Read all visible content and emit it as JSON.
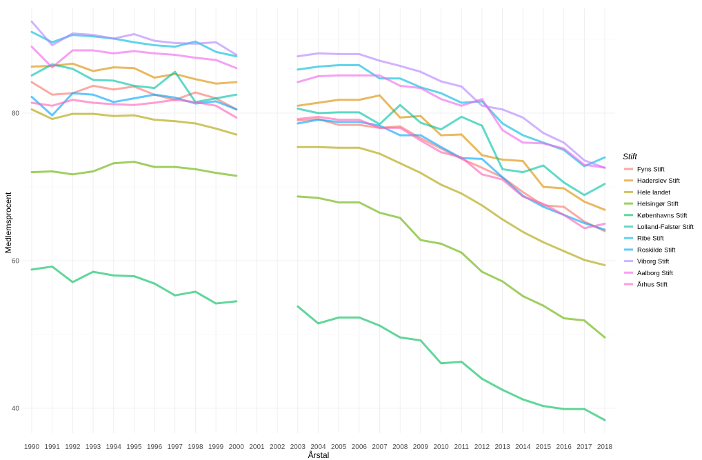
{
  "chart_data": {
    "type": "line",
    "xlabel": "Årstal",
    "ylabel": "Medlemsprocent",
    "legend_title": "Stift",
    "legend_position": "right",
    "grid": true,
    "xlim": [
      1990,
      2018
    ],
    "ylim": [
      35.5,
      93.5
    ],
    "y_ticks": [
      40,
      60,
      80
    ],
    "x": [
      1990,
      1991,
      1992,
      1993,
      1994,
      1995,
      1996,
      1997,
      1998,
      1999,
      2000,
      2001,
      2002,
      2003,
      2004,
      2005,
      2006,
      2007,
      2008,
      2009,
      2010,
      2011,
      2012,
      2013,
      2014,
      2015,
      2016,
      2017,
      2018
    ],
    "series": [
      {
        "name": "Fyns Stift",
        "color": "#F8766D",
        "values": [
          84.2,
          82.5,
          82.7,
          83.7,
          83.2,
          83.6,
          82.5,
          81.8,
          82.8,
          82.0,
          80.5,
          null,
          null,
          79.0,
          79.2,
          78.4,
          78.4,
          78.0,
          78.2,
          76.6,
          75.2,
          73.8,
          72.6,
          71.3,
          69.3,
          67.5,
          67.3,
          65.3,
          64.0
        ]
      },
      {
        "name": "Haderslev Stift",
        "color": "#DB8E00",
        "values": [
          86.3,
          86.4,
          86.7,
          85.7,
          86.2,
          86.1,
          84.8,
          85.3,
          84.6,
          84.0,
          84.2,
          null,
          null,
          81.0,
          81.4,
          81.8,
          81.8,
          82.4,
          79.4,
          79.6,
          77.0,
          77.1,
          74.3,
          73.7,
          73.5,
          70.0,
          69.8,
          68.0,
          66.9
        ]
      },
      {
        "name": "Hele landet",
        "color": "#AEA200",
        "values": [
          80.5,
          79.2,
          79.9,
          79.9,
          79.6,
          79.7,
          79.1,
          78.9,
          78.6,
          77.9,
          77.1,
          null,
          null,
          75.4,
          75.4,
          75.3,
          75.3,
          74.5,
          73.2,
          71.9,
          70.3,
          69.1,
          67.5,
          65.6,
          63.9,
          62.5,
          61.3,
          60.1,
          59.4
        ]
      },
      {
        "name": "Helsingør Stift",
        "color": "#64B200",
        "values": [
          72.0,
          72.1,
          71.7,
          72.1,
          73.2,
          73.4,
          72.7,
          72.7,
          72.4,
          71.9,
          71.5,
          null,
          null,
          68.7,
          68.5,
          67.9,
          67.9,
          66.5,
          65.8,
          62.8,
          62.3,
          61.1,
          58.5,
          57.2,
          55.2,
          53.9,
          52.2,
          51.9,
          49.6
        ]
      },
      {
        "name": "Københavns Stift",
        "color": "#00BD5C",
        "values": [
          58.8,
          59.2,
          57.1,
          58.5,
          58.0,
          57.9,
          56.9,
          55.3,
          55.8,
          54.2,
          54.5,
          null,
          null,
          53.8,
          51.5,
          52.3,
          52.3,
          51.2,
          49.6,
          49.2,
          46.1,
          46.3,
          44.0,
          42.5,
          41.2,
          40.3,
          39.9,
          39.9,
          38.4
        ]
      },
      {
        "name": "Lolland-Falster Stift",
        "color": "#00C1A7",
        "values": [
          85.1,
          86.6,
          86.0,
          84.5,
          84.4,
          83.7,
          83.4,
          85.6,
          81.5,
          82.0,
          82.5,
          null,
          null,
          80.6,
          80.0,
          80.1,
          80.1,
          78.5,
          81.1,
          78.7,
          77.8,
          79.5,
          78.3,
          72.4,
          72.0,
          72.9,
          70.6,
          68.9,
          70.4
        ]
      },
      {
        "name": "Ribe Stift",
        "color": "#00BADE",
        "values": [
          91.0,
          89.6,
          90.6,
          90.4,
          90.1,
          89.6,
          89.2,
          89.0,
          89.7,
          88.3,
          87.7,
          null,
          null,
          85.9,
          86.3,
          86.5,
          86.5,
          84.7,
          84.7,
          83.5,
          82.7,
          81.4,
          81.6,
          78.6,
          77.0,
          76.0,
          75.0,
          72.8,
          74.0
        ]
      },
      {
        "name": "Roskilde Stift",
        "color": "#00A6FF",
        "values": [
          82.2,
          79.7,
          82.7,
          82.5,
          81.5,
          82.0,
          82.5,
          82.1,
          81.3,
          81.6,
          80.5,
          null,
          null,
          78.6,
          79.1,
          78.8,
          78.8,
          78.3,
          77.0,
          77.0,
          75.4,
          73.9,
          73.8,
          71.3,
          68.8,
          67.3,
          66.2,
          65.1,
          64.2
        ]
      },
      {
        "name": "Viborg Stift",
        "color": "#B385FF",
        "values": [
          92.4,
          89.2,
          90.8,
          90.6,
          90.1,
          90.7,
          89.8,
          89.5,
          89.4,
          89.6,
          87.9,
          null,
          null,
          87.7,
          88.1,
          88.0,
          88.0,
          87.1,
          86.4,
          85.6,
          84.3,
          83.6,
          81.0,
          80.5,
          79.4,
          77.3,
          76.0,
          73.6,
          72.6
        ]
      },
      {
        "name": "Aalborg Stift",
        "color": "#EF67EB",
        "values": [
          89.0,
          86.2,
          88.5,
          88.5,
          88.1,
          88.4,
          88.1,
          87.9,
          87.5,
          87.2,
          86.1,
          null,
          null,
          84.2,
          85.0,
          85.1,
          85.1,
          85.1,
          83.7,
          83.4,
          81.9,
          81.0,
          81.9,
          77.7,
          76.0,
          75.9,
          75.2,
          73.0,
          72.6
        ]
      },
      {
        "name": "Århus Stift",
        "color": "#FF63B6",
        "values": [
          81.4,
          81.0,
          81.8,
          81.4,
          81.2,
          81.1,
          81.4,
          81.8,
          81.5,
          81.0,
          79.4,
          null,
          null,
          79.2,
          79.5,
          79.1,
          79.1,
          78.0,
          78.0,
          76.3,
          74.7,
          74.0,
          71.7,
          71.0,
          68.7,
          67.7,
          66.2,
          64.4,
          65.0
        ]
      }
    ]
  }
}
